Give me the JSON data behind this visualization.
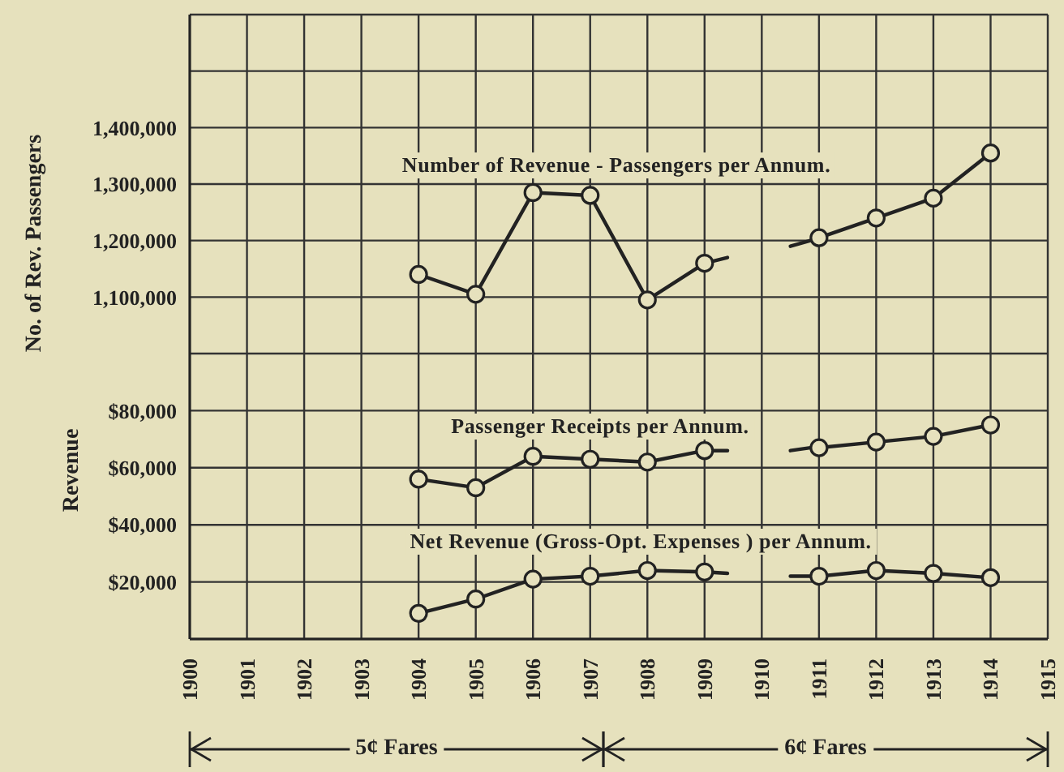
{
  "chart_data": [
    {
      "type": "line",
      "ylabel": "No. of Rev. Passengers",
      "xlim": [
        1900,
        1915
      ],
      "xticks": [
        1900,
        1901,
        1902,
        1903,
        1904,
        1905,
        1906,
        1907,
        1908,
        1909,
        1910,
        1911,
        1912,
        1913,
        1914,
        1915
      ],
      "ylim": [
        1000000,
        1600000
      ],
      "yticks": [
        {
          "value": 1000000,
          "label": null
        },
        {
          "value": 1100000,
          "label": "1,100,000"
        },
        {
          "value": 1200000,
          "label": "1,200,000"
        },
        {
          "value": 1300000,
          "label": "1,300,000"
        },
        {
          "value": 1400000,
          "label": "1,400,000"
        },
        {
          "value": 1500000,
          "label": null
        },
        {
          "value": 1600000,
          "label": null
        }
      ],
      "grid": true,
      "marker": "circle",
      "tick_labels": "y",
      "series": [
        {
          "name": "Number of Revenue - Passengers per Annum.",
          "color": "#222222",
          "x": [
            1904,
            1905,
            1906,
            1907,
            1908,
            1909
          ],
          "values": [
            1140000,
            1105000,
            1285000,
            1280000,
            1095000,
            1160000
          ]
        },
        {
          "color": "#222222",
          "marker": "none",
          "x": [
            1909,
            1909.4
          ],
          "values": [
            1160000,
            1170000
          ]
        },
        {
          "color": "#222222",
          "marker": "none",
          "x": [
            1910.5,
            1910.85
          ],
          "values": [
            1190000,
            1200000
          ]
        },
        {
          "color": "#222222",
          "x": [
            1911,
            1912,
            1913,
            1914
          ],
          "values": [
            1205000,
            1240000,
            1275000,
            1355000
          ]
        }
      ]
    },
    {
      "type": "line",
      "ylabel": "Revenue",
      "xlim": [
        1900,
        1915
      ],
      "xticks": [
        1900,
        1901,
        1902,
        1903,
        1904,
        1905,
        1906,
        1907,
        1908,
        1909,
        1910,
        1911,
        1912,
        1913,
        1914,
        1915
      ],
      "ylim": [
        0,
        100000
      ],
      "yticks": [
        {
          "value": 20000,
          "label": "$20,000"
        },
        {
          "value": 40000,
          "label": "$40,000"
        },
        {
          "value": 60000,
          "label": "$60,000"
        },
        {
          "value": 80000,
          "label": "$80,000"
        },
        {
          "value": 100000,
          "label": null
        }
      ],
      "grid": true,
      "marker": "circle",
      "annotations": [
        "5¢ Fares",
        "6¢ Fares"
      ],
      "series": [
        {
          "name": "Passenger Receipts per Annum.",
          "color": "#222222",
          "x": [
            1904,
            1905,
            1906,
            1907,
            1908,
            1909
          ],
          "values": [
            56000,
            53000,
            64000,
            63000,
            62000,
            66000
          ]
        },
        {
          "color": "#222222",
          "marker": "none",
          "x": [
            1909,
            1909.4
          ],
          "values": [
            66000,
            66000
          ]
        },
        {
          "color": "#222222",
          "marker": "none",
          "x": [
            1910.5,
            1910.85
          ],
          "values": [
            66000,
            67000
          ]
        },
        {
          "color": "#222222",
          "x": [
            1911,
            1912,
            1913,
            1914
          ],
          "values": [
            67000,
            69000,
            71000,
            75000
          ]
        },
        {
          "name": "Net Revenue (Gross-Opt. Expenses ) per Annum.",
          "color": "#222222",
          "x": [
            1904,
            1905,
            1906,
            1907,
            1908,
            1909
          ],
          "values": [
            9000,
            14000,
            21000,
            22000,
            24000,
            23500
          ]
        },
        {
          "color": "#222222",
          "marker": "none",
          "x": [
            1909,
            1909.4
          ],
          "values": [
            23500,
            23000
          ]
        },
        {
          "color": "#222222",
          "marker": "none",
          "x": [
            1910.5,
            1910.85
          ],
          "values": [
            22000,
            22000
          ]
        },
        {
          "color": "#222222",
          "x": [
            1911,
            1912,
            1913,
            1914
          ],
          "values": [
            22000,
            24000,
            23000,
            21500
          ]
        }
      ]
    }
  ]
}
